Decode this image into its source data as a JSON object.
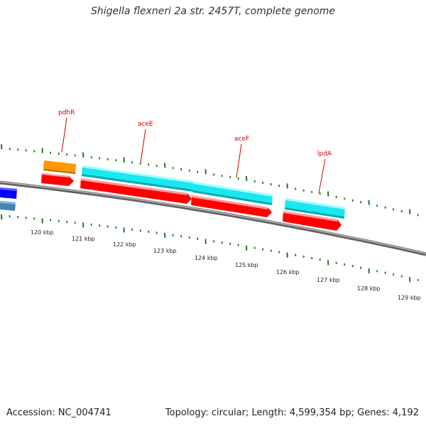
{
  "title": "Shigella flexneri 2a str. 2457T, complete genome",
  "accession": "Accession: NC_004741",
  "summary": "Topology: circular; Length: 4,599,354 bp; Genes: 4,192",
  "colors": {
    "backbone": "#808080",
    "tick": "#1a7a1a",
    "cds": "#ff0000",
    "gene_cyan": "#1ae8f0",
    "gene_orange": "#ff9900",
    "gene_blue": "#0000ff",
    "gene_steelblue": "#4682b4",
    "label": "#cc0000"
  },
  "scale_labels": [
    "120 kbp",
    "121 kbp",
    "122 kbp",
    "123 kbp",
    "124 kbp",
    "125 kbp",
    "126 kbp",
    "127 kbp",
    "128 kbp",
    "129 kbp"
  ],
  "gene_labels": [
    "pdhR",
    "aceE",
    "aceF",
    "lpdA"
  ]
}
